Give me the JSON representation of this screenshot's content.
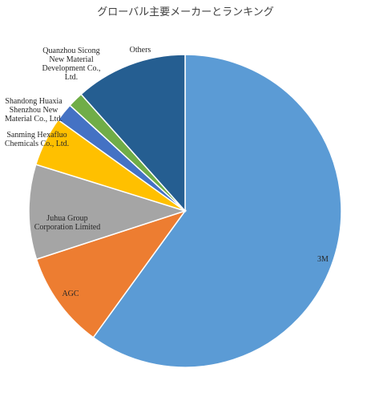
{
  "chart_data": {
    "type": "pie",
    "title": "グローバル主要メーカーとランキング",
    "start": "top-clockwise",
    "labels_position": "inside",
    "slices": [
      {
        "name": "3M",
        "value": 60.0,
        "color": "#5B9BD5"
      },
      {
        "name": "AGC",
        "value": 10.0,
        "color": "#ED7D31"
      },
      {
        "name": "Juhua Group Corporation Limited",
        "value": 9.8,
        "color": "#A5A5A5"
      },
      {
        "name": "Sanming Hexafluo Chemicals Co., Ltd.",
        "value": 5.1,
        "color": "#FFC000"
      },
      {
        "name": "Shandong Huaxia Shenzhou New Material Co., Ltd.",
        "value": 1.9,
        "color": "#4472C4"
      },
      {
        "name": "Quanzhou Sicong New Material Development Co., Ltd.",
        "value": 1.6,
        "color": "#70AD47"
      },
      {
        "name": "Others",
        "value": 11.6,
        "color": "#255E91"
      }
    ]
  }
}
